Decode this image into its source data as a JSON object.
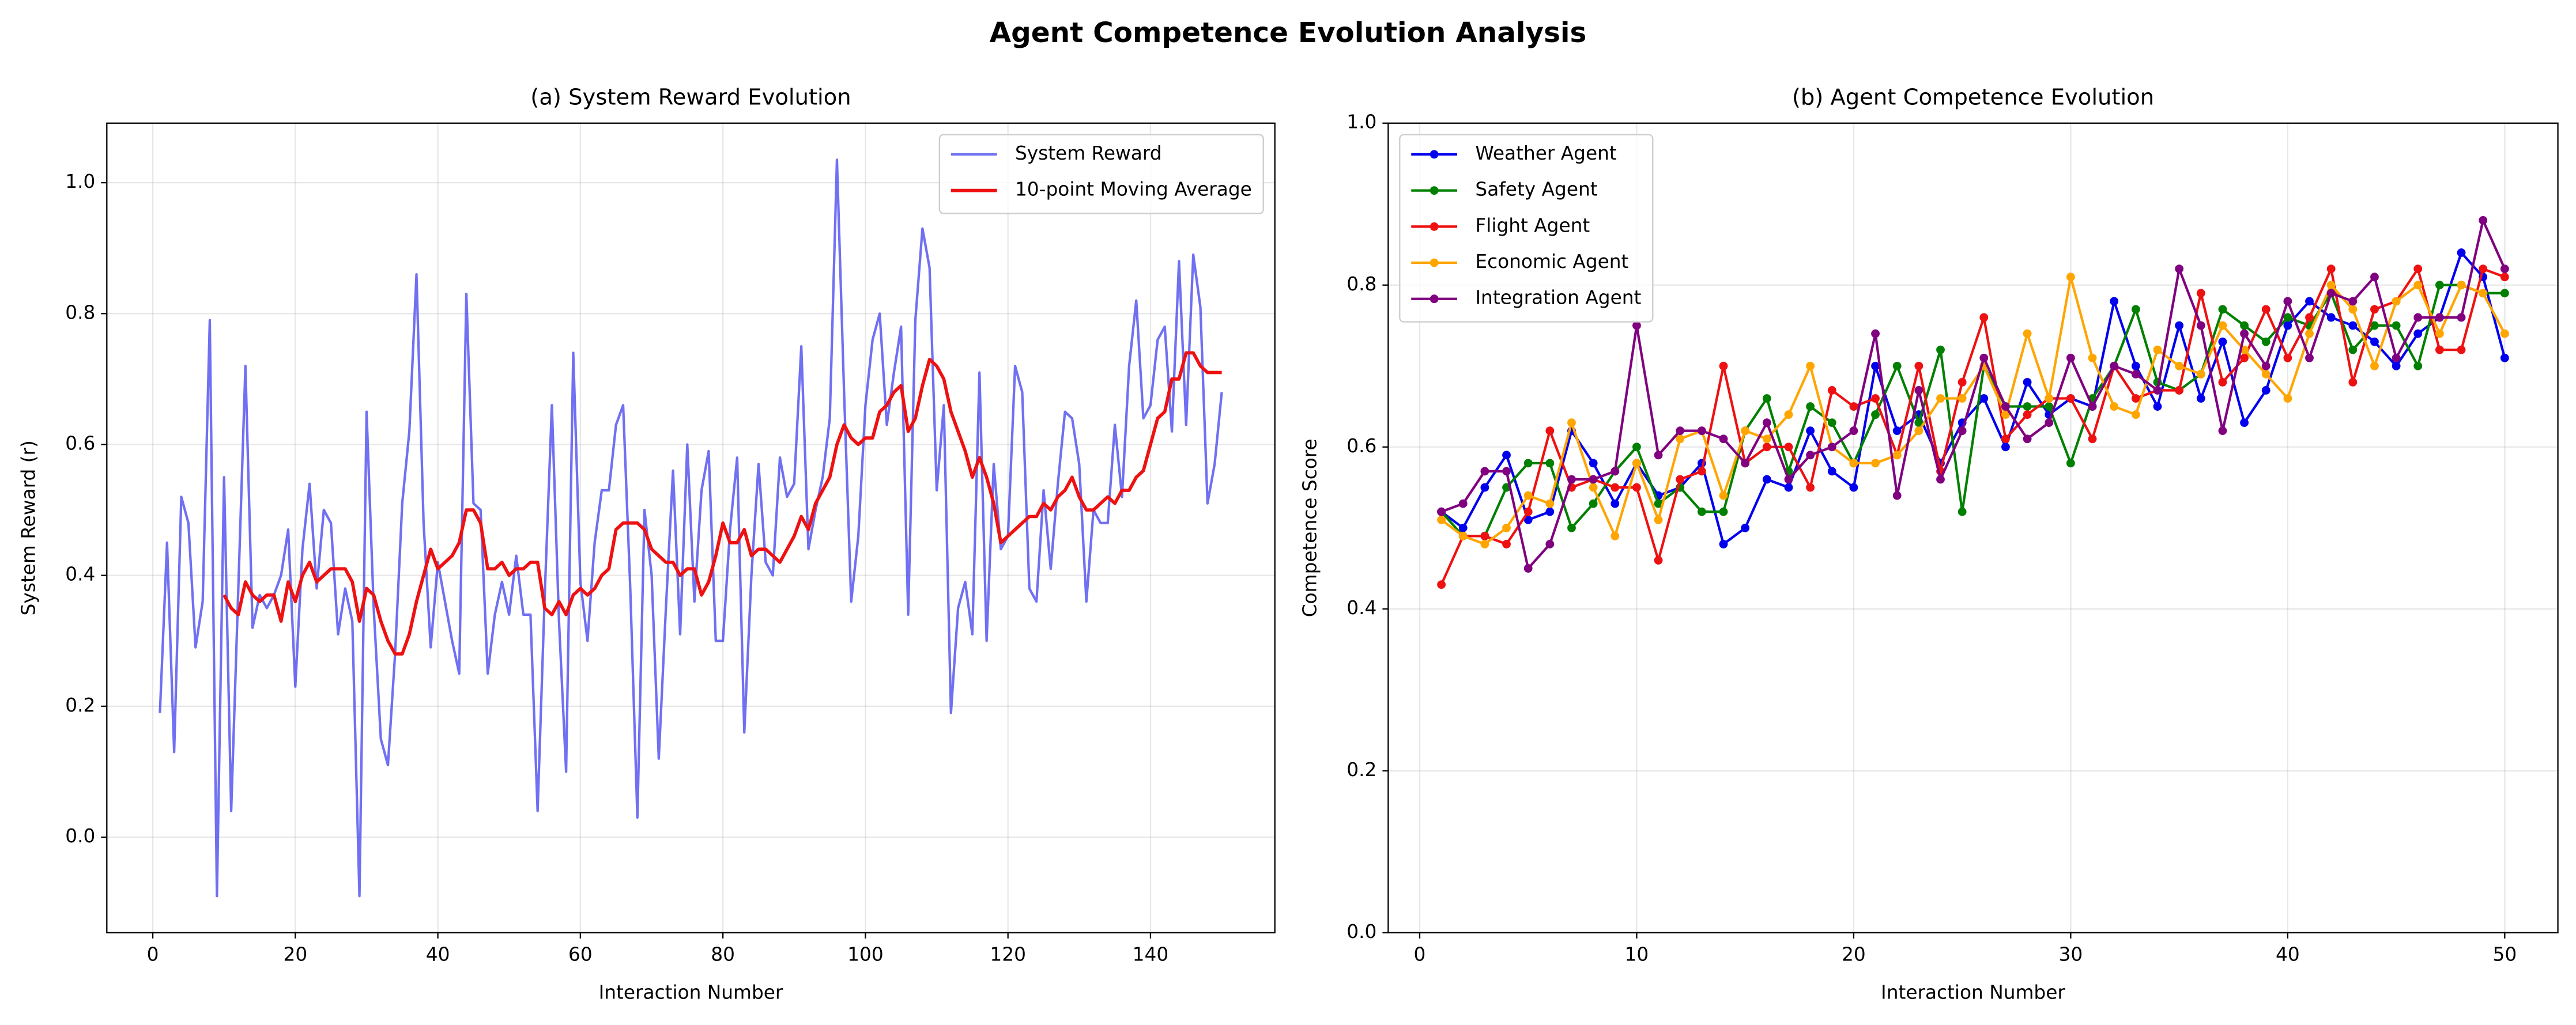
{
  "title": "Agent Competence Evolution Analysis",
  "chart_data": [
    {
      "type": "line",
      "title": "(a) System Reward Evolution",
      "xlabel": "Interaction Number",
      "ylabel": "System Reward (r)",
      "x": [
        1,
        2,
        3,
        4,
        5,
        6,
        7,
        8,
        9,
        10,
        11,
        12,
        13,
        14,
        15,
        16,
        17,
        18,
        19,
        20,
        21,
        22,
        23,
        24,
        25,
        26,
        27,
        28,
        29,
        30,
        31,
        32,
        33,
        34,
        35,
        36,
        37,
        38,
        39,
        40,
        41,
        42,
        43,
        44,
        45,
        46,
        47,
        48,
        49,
        50,
        51,
        52,
        53,
        54,
        55,
        56,
        57,
        58,
        59,
        60,
        61,
        62,
        63,
        64,
        65,
        66,
        67,
        68,
        69,
        70,
        71,
        72,
        73,
        74,
        75,
        76,
        77,
        78,
        79,
        80,
        81,
        82,
        83,
        84,
        85,
        86,
        87,
        88,
        89,
        90,
        91,
        92,
        93,
        94,
        95,
        96,
        97,
        98,
        99,
        100,
        101,
        102,
        103,
        104,
        105,
        106,
        107,
        108,
        109,
        110,
        111,
        112,
        113,
        114,
        115,
        116,
        117,
        118,
        119,
        120,
        121,
        122,
        123,
        124,
        125,
        126,
        127,
        128,
        129,
        130,
        131,
        132,
        133,
        134,
        135,
        136,
        137,
        138,
        139,
        140,
        141,
        142,
        143,
        144,
        145,
        146,
        147,
        148,
        149,
        150
      ],
      "series": [
        {
          "name": "System Reward",
          "color": "#4040ee",
          "alpha": 0.75,
          "linewidth": 1.5,
          "values": [
            0.19,
            0.45,
            0.13,
            0.52,
            0.48,
            0.29,
            0.36,
            0.79,
            -0.09,
            0.55,
            0.04,
            0.38,
            0.72,
            0.32,
            0.37,
            0.35,
            0.37,
            0.4,
            0.47,
            0.23,
            0.44,
            0.54,
            0.38,
            0.5,
            0.48,
            0.31,
            0.38,
            0.33,
            -0.09,
            0.65,
            0.35,
            0.15,
            0.11,
            0.28,
            0.51,
            0.62,
            0.86,
            0.48,
            0.29,
            0.42,
            0.36,
            0.3,
            0.25,
            0.83,
            0.51,
            0.5,
            0.25,
            0.34,
            0.39,
            0.34,
            0.43,
            0.34,
            0.34,
            0.04,
            0.37,
            0.66,
            0.33,
            0.1,
            0.74,
            0.39,
            0.3,
            0.45,
            0.53,
            0.53,
            0.63,
            0.66,
            0.38,
            0.03,
            0.5,
            0.4,
            0.12,
            0.35,
            0.56,
            0.31,
            0.6,
            0.36,
            0.53,
            0.59,
            0.3,
            0.3,
            0.47,
            0.58,
            0.16,
            0.4,
            0.57,
            0.42,
            0.4,
            0.58,
            0.52,
            0.54,
            0.75,
            0.44,
            0.5,
            0.55,
            0.64,
            1.035,
            0.68,
            0.36,
            0.46,
            0.66,
            0.76,
            0.8,
            0.63,
            0.71,
            0.78,
            0.34,
            0.79,
            0.93,
            0.87,
            0.53,
            0.66,
            0.19,
            0.35,
            0.39,
            0.31,
            0.71,
            0.3,
            0.57,
            0.44,
            0.46,
            0.72,
            0.68,
            0.38,
            0.36,
            0.53,
            0.41,
            0.54,
            0.65,
            0.64,
            0.57,
            0.36,
            0.5,
            0.48,
            0.48,
            0.63,
            0.52,
            0.72,
            0.82,
            0.64,
            0.66,
            0.76,
            0.78,
            0.62,
            0.88,
            0.63,
            0.89,
            0.81,
            0.51,
            0.57,
            0.68
          ]
        },
        {
          "name": "10-point Moving Average",
          "color": "#ee1111",
          "alpha": 1,
          "linewidth": 2,
          "values": [
            null,
            null,
            null,
            null,
            null,
            null,
            null,
            null,
            null,
            0.37,
            0.35,
            0.34,
            0.39,
            0.37,
            0.36,
            0.37,
            0.37,
            0.33,
            0.39,
            0.36,
            0.4,
            0.42,
            0.39,
            0.4,
            0.41,
            0.41,
            0.41,
            0.39,
            0.33,
            0.38,
            0.37,
            0.33,
            0.3,
            0.28,
            0.28,
            0.31,
            0.36,
            0.4,
            0.44,
            0.41,
            0.42,
            0.43,
            0.45,
            0.5,
            0.5,
            0.48,
            0.41,
            0.41,
            0.42,
            0.4,
            0.41,
            0.41,
            0.42,
            0.42,
            0.35,
            0.34,
            0.36,
            0.34,
            0.37,
            0.38,
            0.37,
            0.38,
            0.4,
            0.41,
            0.47,
            0.48,
            0.48,
            0.48,
            0.47,
            0.44,
            0.43,
            0.42,
            0.42,
            0.4,
            0.41,
            0.41,
            0.37,
            0.39,
            0.43,
            0.48,
            0.45,
            0.45,
            0.47,
            0.43,
            0.44,
            0.44,
            0.43,
            0.42,
            0.44,
            0.46,
            0.49,
            0.47,
            0.51,
            0.53,
            0.55,
            0.6,
            0.63,
            0.61,
            0.6,
            0.61,
            0.61,
            0.65,
            0.66,
            0.68,
            0.69,
            0.62,
            0.64,
            0.69,
            0.73,
            0.72,
            0.7,
            0.65,
            0.62,
            0.59,
            0.55,
            0.58,
            0.55,
            0.51,
            0.45,
            0.46,
            0.47,
            0.48,
            0.49,
            0.49,
            0.51,
            0.5,
            0.52,
            0.53,
            0.55,
            0.52,
            0.5,
            0.5,
            0.51,
            0.52,
            0.51,
            0.53,
            0.53,
            0.55,
            0.56,
            0.6,
            0.64,
            0.65,
            0.7,
            0.7,
            0.74,
            0.74,
            0.72,
            0.71,
            0.71,
            0.71
          ]
        }
      ],
      "xlim": [
        -6.45,
        157.45
      ],
      "xticks": [
        0,
        20,
        40,
        60,
        80,
        100,
        120,
        140
      ],
      "ylim": [
        -0.146,
        1.091
      ],
      "yticks": [
        {
          "value": 0,
          "label": "0.0"
        },
        0.2,
        0.4,
        0.6,
        0.8,
        {
          "value": 1,
          "label": "1.0"
        }
      ],
      "grid": true,
      "legend": "upper right"
    },
    {
      "type": "line",
      "title": "(b) Agent Competence Evolution",
      "xlabel": "Interaction Number",
      "ylabel": "Competence Score",
      "x": [
        1,
        2,
        3,
        4,
        5,
        6,
        7,
        8,
        9,
        10,
        11,
        12,
        13,
        14,
        15,
        16,
        17,
        18,
        19,
        20,
        21,
        22,
        23,
        24,
        25,
        26,
        27,
        28,
        29,
        30,
        31,
        32,
        33,
        34,
        35,
        36,
        37,
        38,
        39,
        40,
        41,
        42,
        43,
        44,
        45,
        46,
        47,
        48,
        49,
        50
      ],
      "marker": "o",
      "series": [
        {
          "name": "Weather Agent",
          "color": "#0000ee",
          "values": [
            0.52,
            0.5,
            0.55,
            0.59,
            0.51,
            0.52,
            0.62,
            0.58,
            0.53,
            0.58,
            0.54,
            0.55,
            0.58,
            0.48,
            0.5,
            0.56,
            0.55,
            0.62,
            0.57,
            0.55,
            0.7,
            0.62,
            0.64,
            0.58,
            0.63,
            0.66,
            0.6,
            0.68,
            0.64,
            0.66,
            0.65,
            0.78,
            0.7,
            0.65,
            0.75,
            0.66,
            0.73,
            0.63,
            0.67,
            0.75,
            0.78,
            0.76,
            0.75,
            0.73,
            0.7,
            0.74,
            0.76,
            0.84,
            0.81,
            0.71
          ]
        },
        {
          "name": "Safety Agent",
          "color": "#008000",
          "values": [
            0.52,
            0.49,
            0.49,
            0.55,
            0.58,
            0.58,
            0.5,
            0.53,
            0.57,
            0.6,
            0.53,
            0.55,
            0.52,
            0.52,
            0.62,
            0.66,
            0.57,
            0.65,
            0.63,
            0.58,
            0.64,
            0.7,
            0.63,
            0.72,
            0.52,
            0.7,
            0.65,
            0.65,
            0.65,
            0.58,
            0.66,
            0.7,
            0.77,
            0.68,
            0.67,
            0.69,
            0.77,
            0.75,
            0.73,
            0.76,
            0.75,
            0.79,
            0.72,
            0.75,
            0.75,
            0.7,
            0.8,
            0.8,
            0.79,
            0.79
          ]
        },
        {
          "name": "Flight Agent",
          "color": "#ee1111",
          "values": [
            0.43,
            0.49,
            0.49,
            0.48,
            0.52,
            0.62,
            0.55,
            0.56,
            0.55,
            0.55,
            0.46,
            0.56,
            0.57,
            0.7,
            0.58,
            0.6,
            0.6,
            0.55,
            0.67,
            0.65,
            0.66,
            0.59,
            0.7,
            0.57,
            0.68,
            0.76,
            0.61,
            0.64,
            0.66,
            0.66,
            0.61,
            0.7,
            0.66,
            0.67,
            0.67,
            0.79,
            0.68,
            0.71,
            0.77,
            0.71,
            0.76,
            0.82,
            0.68,
            0.77,
            0.78,
            0.82,
            0.72,
            0.72,
            0.82,
            0.81
          ]
        },
        {
          "name": "Economic Agent",
          "color": "#ffa500",
          "values": [
            0.51,
            0.49,
            0.48,
            0.5,
            0.54,
            0.53,
            0.63,
            0.55,
            0.49,
            0.58,
            0.51,
            0.61,
            0.62,
            0.54,
            0.62,
            0.61,
            0.64,
            0.7,
            0.6,
            0.58,
            0.58,
            0.59,
            0.62,
            0.66,
            0.66,
            0.7,
            0.64,
            0.74,
            0.66,
            0.81,
            0.71,
            0.65,
            0.64,
            0.72,
            0.7,
            0.69,
            0.75,
            0.72,
            0.69,
            0.66,
            0.74,
            0.8,
            0.77,
            0.7,
            0.78,
            0.8,
            0.74,
            0.8,
            0.79,
            0.74
          ]
        },
        {
          "name": "Integration Agent",
          "color": "#800080",
          "values": [
            0.52,
            0.53,
            0.57,
            0.57,
            0.45,
            0.48,
            0.56,
            0.56,
            0.57,
            0.75,
            0.59,
            0.62,
            0.62,
            0.61,
            0.58,
            0.63,
            0.56,
            0.59,
            0.6,
            0.62,
            0.74,
            0.54,
            0.67,
            0.56,
            0.62,
            0.71,
            0.65,
            0.61,
            0.63,
            0.71,
            0.65,
            0.7,
            0.69,
            0.67,
            0.82,
            0.75,
            0.62,
            0.74,
            0.7,
            0.78,
            0.71,
            0.79,
            0.78,
            0.81,
            0.71,
            0.76,
            0.76,
            0.76,
            0.88,
            0.82
          ]
        }
      ],
      "xlim": [
        -1.45,
        52.45
      ],
      "xticks": [
        0,
        10,
        20,
        30,
        40,
        50
      ],
      "ylim": [
        0,
        1
      ],
      "yticks": [
        {
          "value": 0,
          "label": "0.0"
        },
        0.2,
        0.4,
        0.6,
        0.8,
        {
          "value": 1,
          "label": "1.0"
        }
      ],
      "grid": true,
      "legend": "upper left"
    }
  ]
}
